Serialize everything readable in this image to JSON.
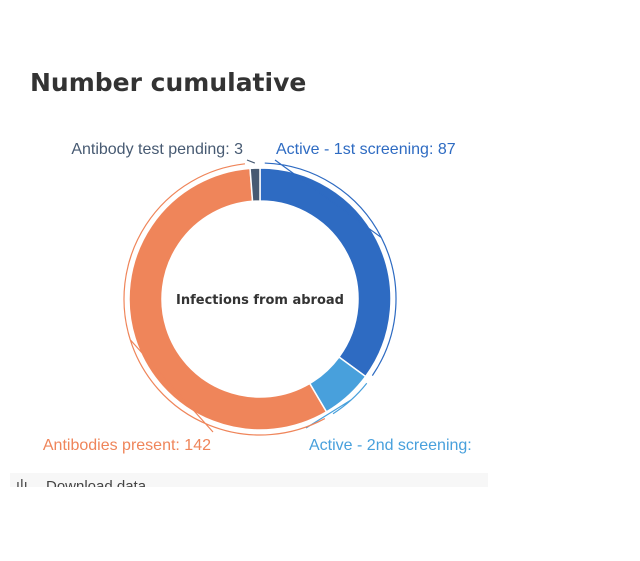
{
  "title": "Number cumulative",
  "download": {
    "label": "Download data",
    "icon": "download-icon"
  },
  "chart_data": {
    "type": "pie",
    "donut": true,
    "center_label": "Infections from abroad",
    "slices": [
      {
        "name": "Active - 1st screening",
        "value": 87,
        "label": "Active - 1st screening: 87",
        "color": "#2e6bc2",
        "label_color": "#2e6bc2"
      },
      {
        "name": "Active - 2nd screening",
        "value": 16,
        "label": "Active - 2nd screening:",
        "color": "#48a0dc",
        "label_color": "#48a0dc"
      },
      {
        "name": "Antibodies present",
        "value": 142,
        "label": "Antibodies present: 142",
        "color": "#ef855a",
        "label_color": "#ef855a"
      },
      {
        "name": "Antibody test pending",
        "value": 3,
        "label": "Antibody test pending: 3",
        "color": "#475a72",
        "label_color": "#475a72"
      }
    ]
  }
}
